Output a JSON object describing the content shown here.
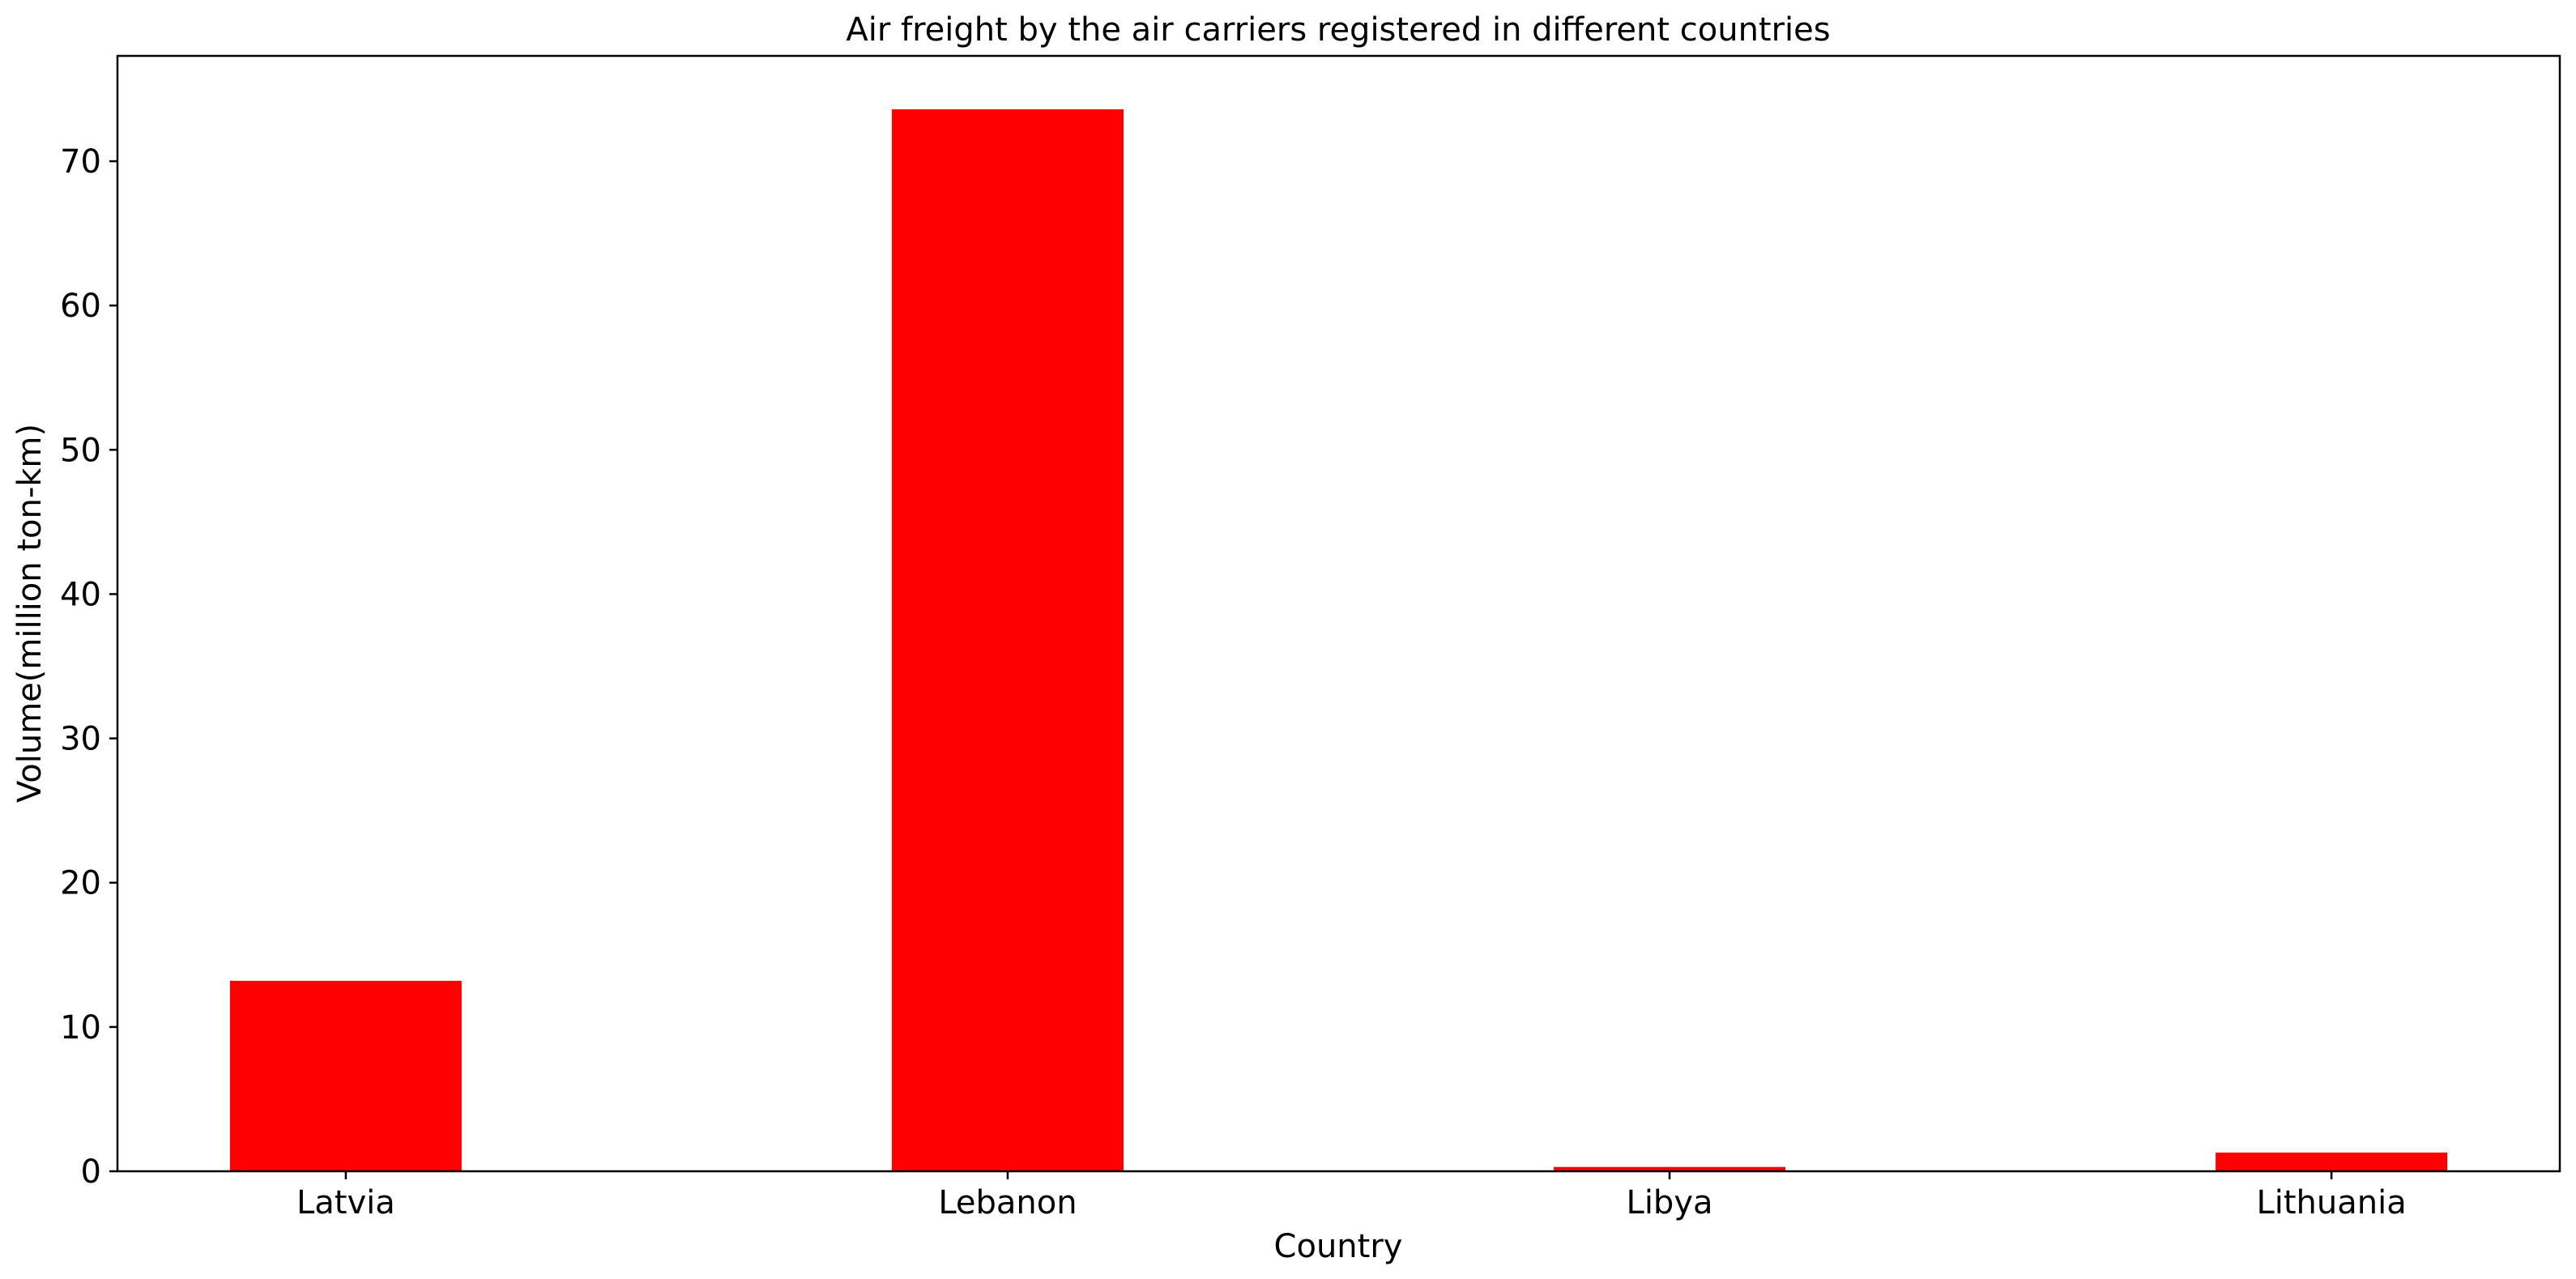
{
  "chart_data": {
    "type": "bar",
    "title": "Air freight by the air carriers registered in different countries",
    "xlabel": "Country",
    "ylabel": "Volume(million ton-km)",
    "categories": [
      "Latvia",
      "Lebanon",
      "Libya",
      "Lithuania"
    ],
    "values": [
      13.2,
      73.6,
      0.3,
      1.3
    ],
    "ylim": [
      0,
      77.3
    ],
    "yticks": [
      0,
      10,
      20,
      30,
      40,
      50,
      60,
      70
    ],
    "grid": false,
    "legend": "none",
    "bar_color": "#ff0000"
  }
}
